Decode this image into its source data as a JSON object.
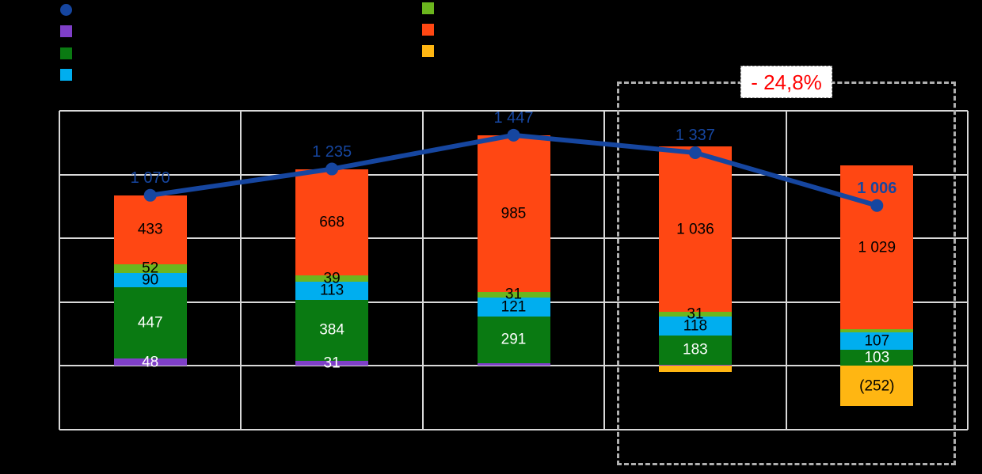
{
  "annotation": {
    "delta_label": "- 24,8%",
    "color": "#FF0000"
  },
  "legend": {
    "left_items": [
      {
        "name": "legend-marker-total-line",
        "marker": "circle",
        "color": "#1646A0"
      },
      {
        "name": "legend-marker-purple-series",
        "marker": "square",
        "color": "#7F3FC8"
      },
      {
        "name": "legend-marker-dark-green-series",
        "marker": "square",
        "color": "#0A7A12"
      },
      {
        "name": "legend-marker-cyan-series",
        "marker": "square",
        "color": "#00AEEF"
      }
    ],
    "right_items": [
      {
        "name": "legend-marker-yellow-green-series",
        "marker": "square",
        "color": "#6CB61E"
      },
      {
        "name": "legend-marker-orange-series",
        "marker": "square",
        "color": "#FF4713"
      },
      {
        "name": "legend-marker-amber-series",
        "marker": "square",
        "color": "#FFB612"
      }
    ],
    "labels_visible": false
  },
  "chart_data": {
    "type": "bar",
    "subtype": "stacked-column-with-total-line",
    "title": "",
    "categories": [
      "",
      "",
      "",
      "",
      ""
    ],
    "category_labels_visible": false,
    "axis": {
      "ymin": -400,
      "ymax": 1600,
      "gridline_step": 400,
      "tick_labels_visible": false,
      "grid": true
    },
    "bar_series": [
      {
        "name": "purple",
        "color": "#7F3FC8",
        "values": [
          48,
          31,
          19,
          8,
          0
        ],
        "visible_labels": [
          "48",
          "31",
          "",
          "",
          ""
        ],
        "label_color": "#FFFFFF"
      },
      {
        "name": "dark-green",
        "color": "#0A7A12",
        "values": [
          447,
          384,
          291,
          183,
          103
        ],
        "visible_labels": [
          "447",
          "384",
          "291",
          "183",
          "103"
        ],
        "label_color": "#FFFFFF"
      },
      {
        "name": "cyan",
        "color": "#00AEEF",
        "values": [
          90,
          113,
          121,
          118,
          107
        ],
        "visible_labels": [
          "90",
          "113",
          "121",
          "118",
          "107"
        ],
        "label_color": "#000000"
      },
      {
        "name": "yellow-green",
        "color": "#6CB61E",
        "values": [
          52,
          39,
          31,
          31,
          19
        ],
        "visible_labels": [
          "52",
          "39",
          "31",
          "31",
          ""
        ],
        "label_color": "#000000"
      },
      {
        "name": "orange-red",
        "color": "#FF4713",
        "values": [
          433,
          668,
          985,
          1036,
          1029
        ],
        "visible_labels": [
          "433",
          "668",
          "985",
          "1 036",
          "1 029"
        ],
        "label_color": "#000000"
      },
      {
        "name": "amber",
        "color": "#FFB612",
        "values": [
          0,
          0,
          0,
          -39,
          -252
        ],
        "visible_labels": [
          "",
          "",
          "",
          "",
          "(252)"
        ],
        "label_color": "#000000"
      }
    ],
    "line_series": {
      "name": "total",
      "color": "#1646A0",
      "values": [
        1070,
        1235,
        1447,
        1337,
        1006
      ],
      "labels": [
        "1 070",
        "1 235",
        "1 447",
        "1 337",
        "1 006"
      ],
      "bold_label_index": 4
    },
    "highlight": {
      "span_categories": [
        3,
        4
      ],
      "delta_label": "- 24,8%",
      "label_color": "#FF0000",
      "box_color": "#B0B0B0"
    },
    "gridline_color": "#D9D9D9",
    "background_color": "#000000"
  }
}
